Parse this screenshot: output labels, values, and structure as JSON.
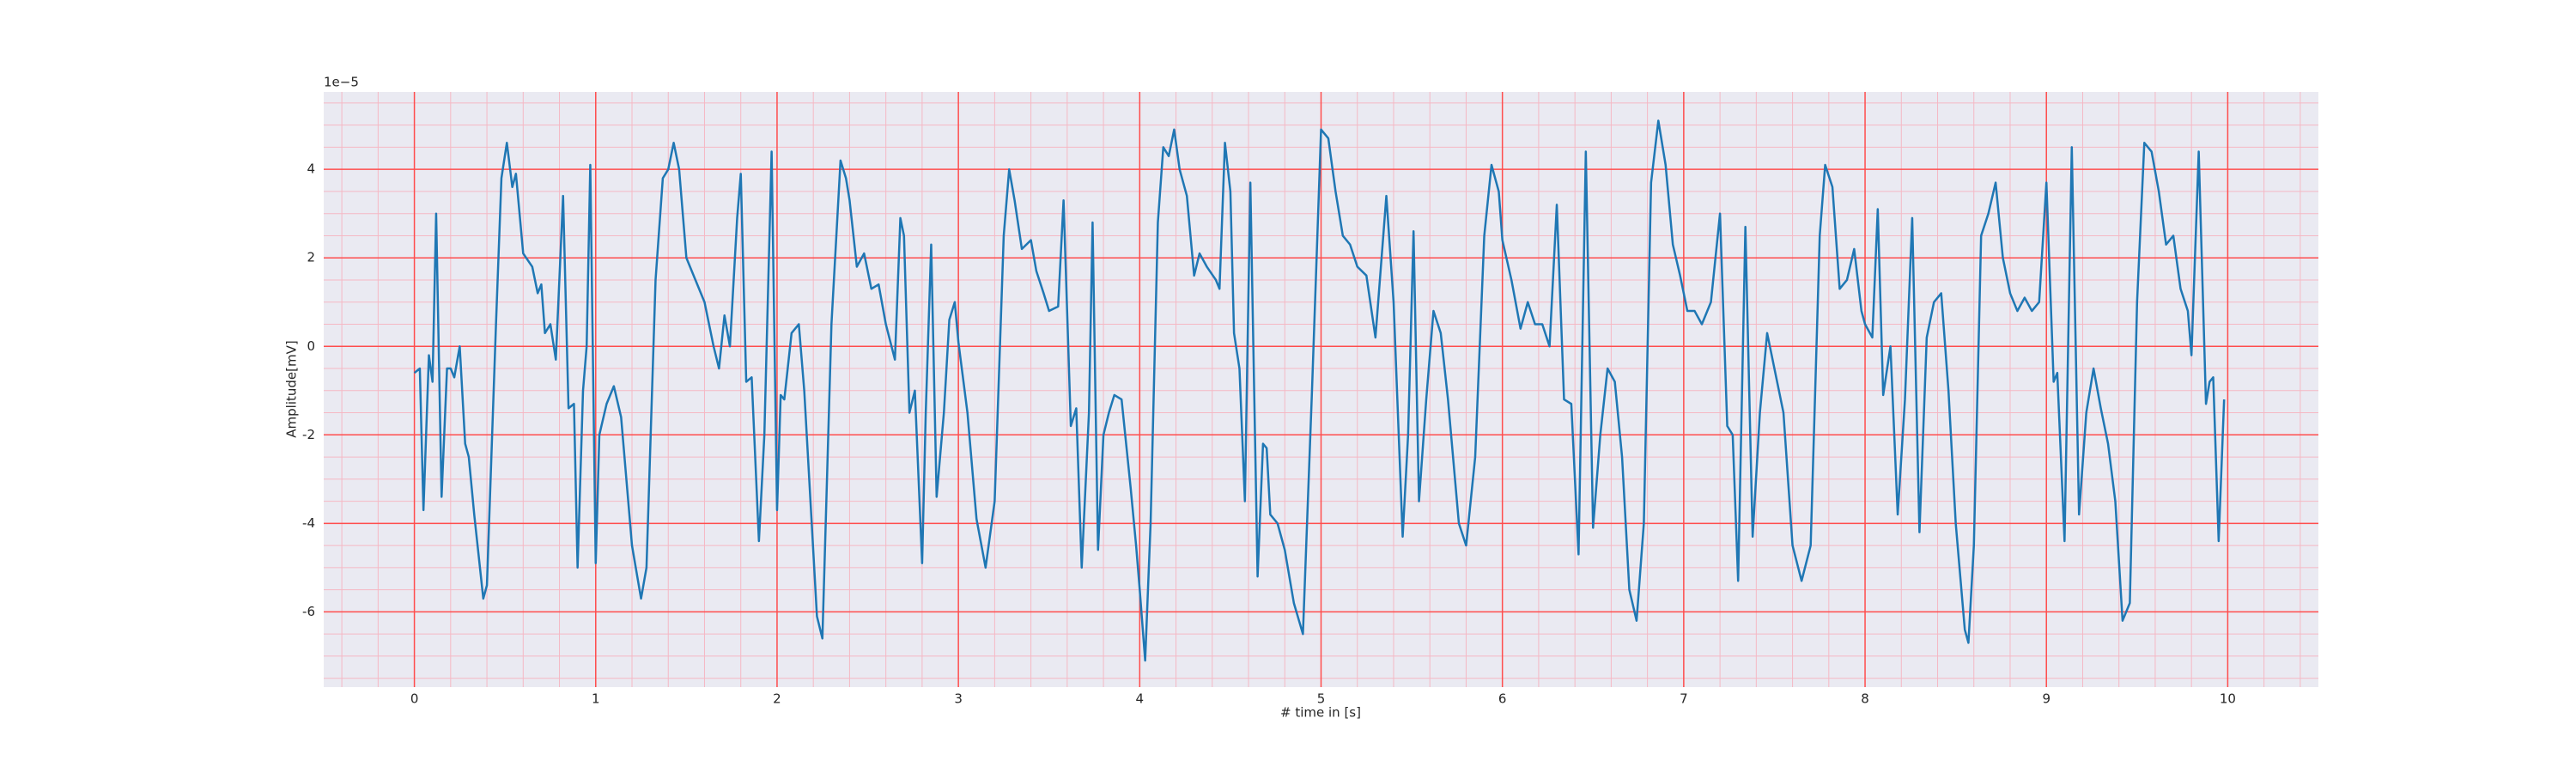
{
  "chart_data": {
    "type": "line",
    "xlabel": "# time in [s]",
    "ylabel": "Amplitude[mV]",
    "offset_text": "1e−5",
    "xlim": [
      -0.5,
      10.5
    ],
    "ylim": [
      -7.7,
      5.75
    ],
    "xticks": [
      0,
      1,
      2,
      3,
      4,
      5,
      6,
      7,
      8,
      9,
      10
    ],
    "yticks": [
      -6,
      -4,
      -2,
      0,
      2,
      4
    ],
    "xminorticks": [
      -0.4,
      -0.2,
      0.2,
      0.4,
      0.6,
      0.8,
      1.2,
      1.4,
      1.6,
      1.8,
      2.2,
      2.4,
      2.6,
      2.8,
      3.2,
      3.4,
      3.6,
      3.8,
      4.2,
      4.4,
      4.6,
      4.8,
      5.2,
      5.4,
      5.6,
      5.8,
      6.2,
      6.4,
      6.6,
      6.8,
      7.2,
      7.4,
      7.6,
      7.8,
      8.2,
      8.4,
      8.6,
      8.8,
      9.2,
      9.4,
      9.6,
      9.8,
      10.2,
      10.4
    ],
    "yminorticks": [
      -7.5,
      -7,
      -6.5,
      -5.5,
      -5,
      -4.5,
      -3.5,
      -3,
      -2.5,
      -1.5,
      -1,
      -0.5,
      0.5,
      1,
      1.5,
      2.5,
      3,
      3.5,
      4.5,
      5,
      5.5
    ],
    "grid": true,
    "minor_grid": true,
    "background": "#eaeaf2",
    "grid_color": "#ff4d4d",
    "minor_grid_color": "#f5b8c4",
    "series": [
      {
        "color": "#1f77b4",
        "x": [
          0,
          0.03,
          0.05,
          0.08,
          0.1,
          0.12,
          0.15,
          0.18,
          0.2,
          0.22,
          0.25,
          0.28,
          0.3,
          0.33,
          0.38,
          0.4,
          0.45,
          0.48,
          0.51,
          0.54,
          0.56,
          0.6,
          0.65,
          0.68,
          0.7,
          0.72,
          0.75,
          0.78,
          0.82,
          0.85,
          0.88,
          0.9,
          0.93,
          0.95,
          0.97,
          1.0,
          1.02,
          1.06,
          1.1,
          1.14,
          1.2,
          1.25,
          1.28,
          1.33,
          1.37,
          1.4,
          1.43,
          1.46,
          1.5,
          1.55,
          1.6,
          1.65,
          1.68,
          1.71,
          1.74,
          1.78,
          1.8,
          1.83,
          1.86,
          1.9,
          1.93,
          1.97,
          2.0,
          2.02,
          2.04,
          2.08,
          2.12,
          2.15,
          2.22,
          2.25,
          2.3,
          2.35,
          2.38,
          2.4,
          2.44,
          2.48,
          2.52,
          2.56,
          2.6,
          2.65,
          2.68,
          2.7,
          2.73,
          2.76,
          2.8,
          2.82,
          2.85,
          2.88,
          2.92,
          2.95,
          2.98,
          3.0,
          3.05,
          3.1,
          3.15,
          3.2,
          3.25,
          3.28,
          3.31,
          3.35,
          3.4,
          3.43,
          3.47,
          3.5,
          3.55,
          3.58,
          3.62,
          3.65,
          3.68,
          3.72,
          3.74,
          3.77,
          3.8,
          3.83,
          3.86,
          3.9,
          3.95,
          3.98,
          4.0,
          4.03,
          4.06,
          4.1,
          4.13,
          4.16,
          4.19,
          4.22,
          4.26,
          4.3,
          4.33,
          4.37,
          4.42,
          4.44,
          4.47,
          4.5,
          4.52,
          4.55,
          4.58,
          4.61,
          4.65,
          4.68,
          4.7,
          4.72,
          4.76,
          4.8,
          4.85,
          4.9,
          4.95,
          5.0,
          5.04,
          5.08,
          5.12,
          5.16,
          5.2,
          5.25,
          5.3,
          5.36,
          5.4,
          5.45,
          5.48,
          5.51,
          5.54,
          5.58,
          5.62,
          5.66,
          5.7,
          5.76,
          5.8,
          5.85,
          5.9,
          5.94,
          5.98,
          6.0,
          6.05,
          6.1,
          6.14,
          6.18,
          6.22,
          6.26,
          6.3,
          6.34,
          6.38,
          6.42,
          6.46,
          6.5,
          6.54,
          6.58,
          6.62,
          6.66,
          6.7,
          6.74,
          6.78,
          6.82,
          6.86,
          6.9,
          6.94,
          6.98,
          7.02,
          7.06,
          7.1,
          7.15,
          7.2,
          7.24,
          7.27,
          7.3,
          7.34,
          7.38,
          7.42,
          7.46,
          7.5,
          7.55,
          7.6,
          7.65,
          7.7,
          7.75,
          7.78,
          7.82,
          7.86,
          7.9,
          7.94,
          7.98,
          8.0,
          8.04,
          8.07,
          8.1,
          8.14,
          8.18,
          8.22,
          8.26,
          8.3,
          8.34,
          8.38,
          8.42,
          8.46,
          8.5,
          8.55,
          8.57,
          8.6,
          8.64,
          8.68,
          8.72,
          8.76,
          8.8,
          8.84,
          8.88,
          8.92,
          8.96,
          9.0,
          9.04,
          9.06,
          9.1,
          9.14,
          9.18,
          9.22,
          9.26,
          9.3,
          9.34,
          9.38,
          9.42,
          9.46,
          9.5,
          9.54,
          9.58,
          9.62,
          9.66,
          9.7,
          9.74,
          9.78,
          9.8,
          9.84,
          9.88,
          9.9,
          9.92,
          9.95,
          9.98
        ],
        "values": [
          -0.6,
          -0.5,
          -3.7,
          -0.2,
          -0.8,
          3.0,
          -3.4,
          -0.5,
          -0.5,
          -0.7,
          0.0,
          -2.2,
          -2.5,
          -3.8,
          -5.7,
          -5.4,
          0.5,
          3.8,
          4.6,
          3.6,
          3.9,
          2.1,
          1.8,
          1.2,
          1.4,
          0.3,
          0.5,
          -0.3,
          3.4,
          -1.4,
          -1.3,
          -5.0,
          -1.0,
          0.0,
          4.1,
          -4.9,
          -2.0,
          -1.3,
          -0.9,
          -1.6,
          -4.5,
          -5.7,
          -5.0,
          1.5,
          3.8,
          4.0,
          4.6,
          4.0,
          2.0,
          1.5,
          1.0,
          0.0,
          -0.5,
          0.7,
          0.0,
          2.9,
          3.9,
          -0.8,
          -0.7,
          -4.4,
          -2.0,
          4.4,
          -3.7,
          -1.1,
          -1.2,
          0.3,
          0.5,
          -1.0,
          -6.1,
          -6.6,
          0.5,
          4.2,
          3.8,
          3.3,
          1.8,
          2.1,
          1.3,
          1.4,
          0.5,
          -0.3,
          2.9,
          2.5,
          -1.5,
          -1.0,
          -4.9,
          -1.5,
          2.3,
          -3.4,
          -1.5,
          0.6,
          1.0,
          0.1,
          -1.5,
          -3.9,
          -5.0,
          -3.5,
          2.5,
          4.0,
          3.3,
          2.2,
          2.4,
          1.7,
          1.2,
          0.8,
          0.9,
          3.3,
          -1.8,
          -1.4,
          -5.0,
          -1.5,
          2.8,
          -4.6,
          -2.0,
          -1.5,
          -1.1,
          -1.2,
          -3.2,
          -4.5,
          -5.5,
          -7.1,
          -4.0,
          2.8,
          4.5,
          4.3,
          4.9,
          4.0,
          3.4,
          1.6,
          2.1,
          1.8,
          1.5,
          1.3,
          4.6,
          3.5,
          0.3,
          -0.5,
          -3.5,
          3.7,
          -5.2,
          -2.2,
          -2.3,
          -3.8,
          -4.0,
          -4.6,
          -5.8,
          -6.5,
          -1.0,
          4.9,
          4.7,
          3.5,
          2.5,
          2.3,
          1.8,
          1.6,
          0.2,
          3.4,
          1.0,
          -4.3,
          -2.0,
          2.6,
          -3.5,
          -1.2,
          0.8,
          0.3,
          -1.2,
          -4.0,
          -4.5,
          -2.5,
          2.5,
          4.1,
          3.5,
          2.4,
          1.5,
          0.4,
          1.0,
          0.5,
          0.5,
          0.0,
          3.2,
          -1.2,
          -1.3,
          -4.7,
          4.4,
          -4.1,
          -2.0,
          -0.5,
          -0.8,
          -2.5,
          -5.5,
          -6.2,
          -4.0,
          3.7,
          5.1,
          4.1,
          2.3,
          1.6,
          0.8,
          0.8,
          0.5,
          1.0,
          3.0,
          -1.8,
          -2.0,
          -5.3,
          2.7,
          -4.3,
          -1.5,
          0.3,
          -0.5,
          -1.5,
          -4.5,
          -5.3,
          -4.5,
          2.5,
          4.1,
          3.6,
          1.3,
          1.5,
          2.2,
          0.8,
          0.5,
          0.2,
          3.1,
          -1.1,
          0.0,
          -3.8,
          -1.2,
          2.9,
          -4.2,
          0.2,
          1.0,
          1.2,
          -1.0,
          -4.0,
          -6.4,
          -6.7,
          -4.5,
          2.5,
          3.0,
          3.7,
          2.0,
          1.2,
          0.8,
          1.1,
          0.8,
          1.0,
          3.7,
          -0.8,
          -0.6,
          -4.4,
          4.5,
          -3.8,
          -1.5,
          -0.5,
          -1.4,
          -2.2,
          -3.5,
          -6.2,
          -5.8,
          1.0,
          4.6,
          4.4,
          3.5,
          2.3,
          2.5,
          1.3,
          0.8,
          -0.2,
          4.4,
          -1.3,
          -0.8,
          -0.7,
          -4.4,
          -1.2
        ]
      }
    ]
  }
}
